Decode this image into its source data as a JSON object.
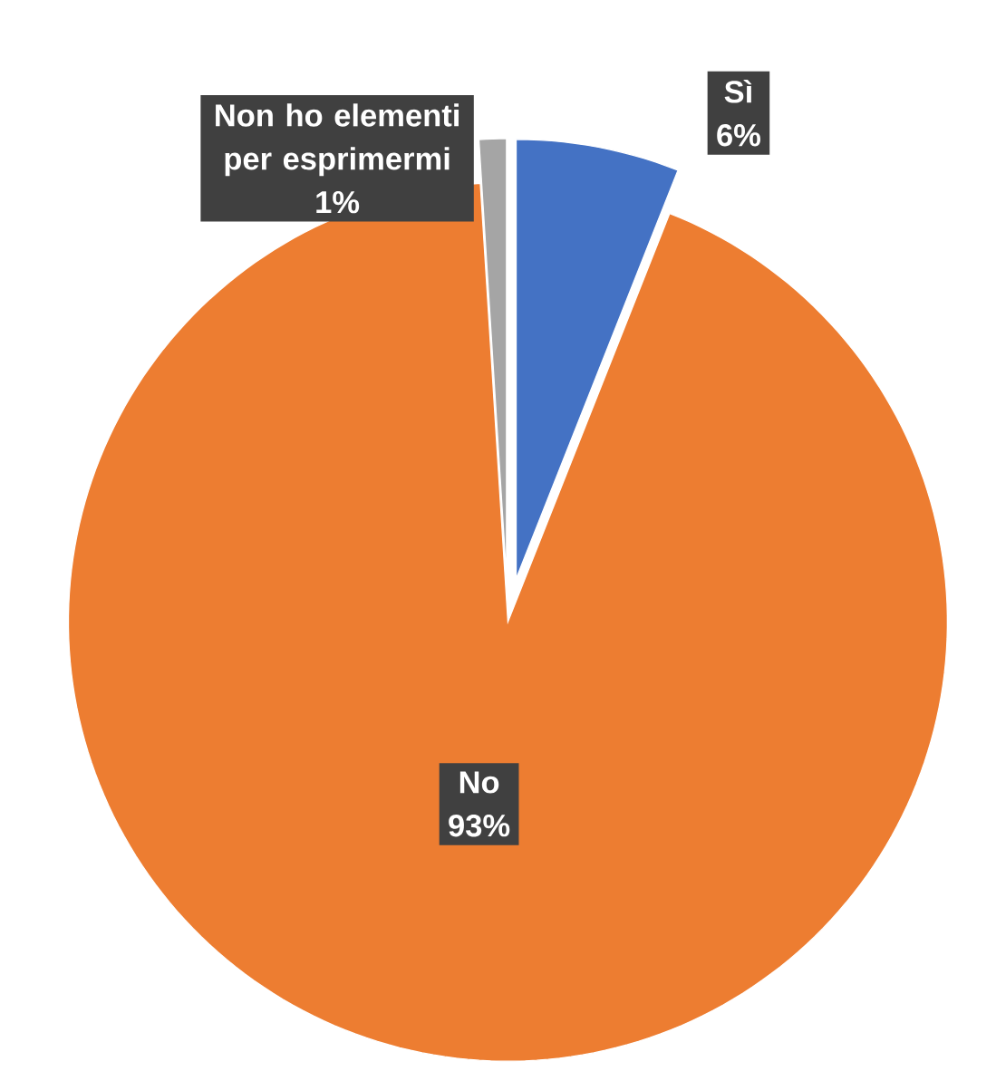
{
  "chart_data": {
    "type": "pie",
    "categories": [
      "Sì",
      "No",
      "Non ho elementi per esprimermi"
    ],
    "values": [
      6,
      93,
      1
    ],
    "colors": [
      "#4472c4",
      "#ed7d31",
      "#a5a5a5"
    ],
    "value_labels": [
      "6%",
      "93%",
      "1%"
    ]
  }
}
